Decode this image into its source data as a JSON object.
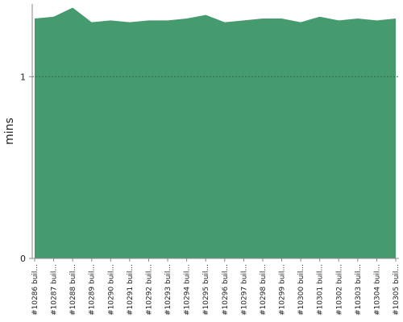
{
  "chart_data": {
    "type": "area",
    "y_label": "mins",
    "categories": [
      "#10286 buil...",
      "#10287 buil...",
      "#10288 buil...",
      "#10289 buil...",
      "#10290 buil...",
      "#10291 buil...",
      "#10292 buil...",
      "#10293 buil...",
      "#10294 buil...",
      "#10295 buil...",
      "#10296 buil...",
      "#10297 buil...",
      "#10298 buil...",
      "#10299 buil...",
      "#10300 buil...",
      "#10301 buil...",
      "#10302 buil...",
      "#10303 buil...",
      "#10304 buil...",
      "#10305 buil..."
    ],
    "values": [
      1.32,
      1.33,
      1.38,
      1.3,
      1.31,
      1.3,
      1.31,
      1.31,
      1.32,
      1.34,
      1.3,
      1.31,
      1.32,
      1.32,
      1.3,
      1.33,
      1.31,
      1.32,
      1.31,
      1.32
    ],
    "color": "#459b6e",
    "ylim": [
      0,
      1.4
    ],
    "yticks": [
      0,
      1
    ],
    "grid": true
  }
}
